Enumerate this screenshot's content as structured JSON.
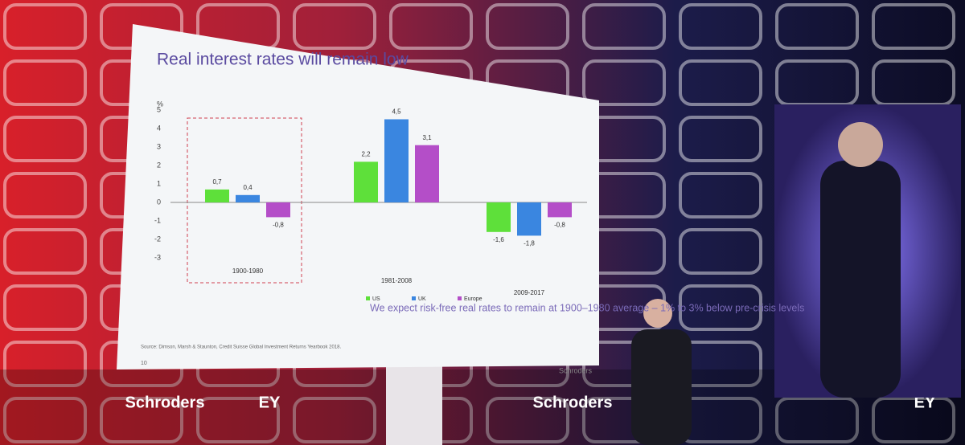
{
  "chart_data": {
    "type": "bar",
    "title": "Real interest rates will remain low",
    "y_unit": "%",
    "categories": [
      "1900-1980",
      "1981-2008",
      "2009-2017"
    ],
    "series": [
      {
        "name": "US",
        "color": "#5ee03a",
        "values": [
          0.7,
          2.2,
          -1.6
        ],
        "value_labels": [
          "0,7",
          "2,2",
          "-1,6"
        ]
      },
      {
        "name": "UK",
        "color": "#3a86e0",
        "values": [
          0.4,
          4.5,
          -1.8
        ],
        "value_labels": [
          "0,4",
          "4,5",
          "-1,8"
        ]
      },
      {
        "name": "Europe",
        "color": "#b44ec8",
        "values": [
          -0.8,
          3.1,
          -0.8
        ],
        "value_labels": [
          "-0,8",
          "3,1",
          "-0,8"
        ]
      }
    ],
    "ylim": [
      -3,
      5
    ],
    "yticks": [
      -3,
      -2,
      -1,
      0,
      1,
      2,
      3,
      4,
      5
    ],
    "grid": false,
    "annotation": "We expect risk-free real rates to remain at 1900–1980 average – 1% to 3% below pre-crisis levels",
    "source": "Source: Dimson, Marsh & Staunton, Credit Suisse Global Investment Returns Yearbook 2018.",
    "page_number": "10",
    "logo": "Schroders"
  },
  "stage_banners": [
    "Schroders",
    "EY",
    "Schroders",
    "EY"
  ]
}
